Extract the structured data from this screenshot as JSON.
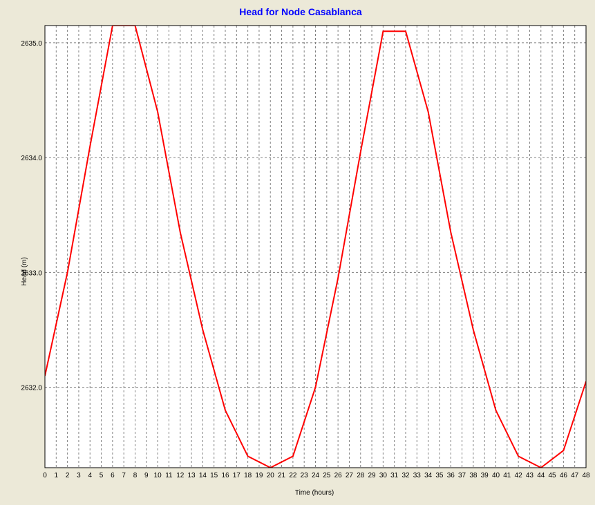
{
  "colors": {
    "frame_background": "#ece9d8",
    "plot_background": "#ffffff",
    "title": "#0000ff",
    "series": "#ff0000",
    "grid": "#808080"
  },
  "chart_data": {
    "type": "line",
    "title": "Head for Node Casablanca",
    "xlabel": "Time (hours)",
    "ylabel": "Head (m)",
    "xlim": [
      0,
      48
    ],
    "ylim": [
      2631.3,
      2635.15
    ],
    "xticks": [
      0,
      1,
      2,
      3,
      4,
      5,
      6,
      7,
      8,
      9,
      10,
      11,
      12,
      13,
      14,
      15,
      16,
      17,
      18,
      19,
      20,
      21,
      22,
      23,
      24,
      25,
      26,
      27,
      28,
      29,
      30,
      31,
      32,
      33,
      34,
      35,
      36,
      37,
      38,
      39,
      40,
      41,
      42,
      43,
      44,
      45,
      46,
      47,
      48
    ],
    "yticks": [
      2632.0,
      2633.0,
      2634.0,
      2635.0
    ],
    "ytick_labels": [
      "2632.0",
      "2633.0",
      "2634.0",
      "2635.0"
    ],
    "grid": true,
    "legend": "none",
    "series": [
      {
        "x": [
          0,
          2,
          4,
          6,
          8,
          10,
          12,
          14,
          16,
          18,
          20,
          22,
          24,
          26,
          28,
          30,
          31,
          32,
          34,
          36,
          38,
          40,
          42,
          44,
          46,
          48
        ],
        "y": [
          2632.1,
          2633.0,
          2634.1,
          2635.15,
          2635.15,
          2634.4,
          2633.35,
          2632.5,
          2631.8,
          2631.4,
          2631.3,
          2631.4,
          2632.0,
          2632.95,
          2634.05,
          2635.1,
          2635.1,
          2635.1,
          2634.4,
          2633.35,
          2632.5,
          2631.8,
          2631.4,
          2631.3,
          2631.45,
          2632.05
        ]
      }
    ]
  }
}
